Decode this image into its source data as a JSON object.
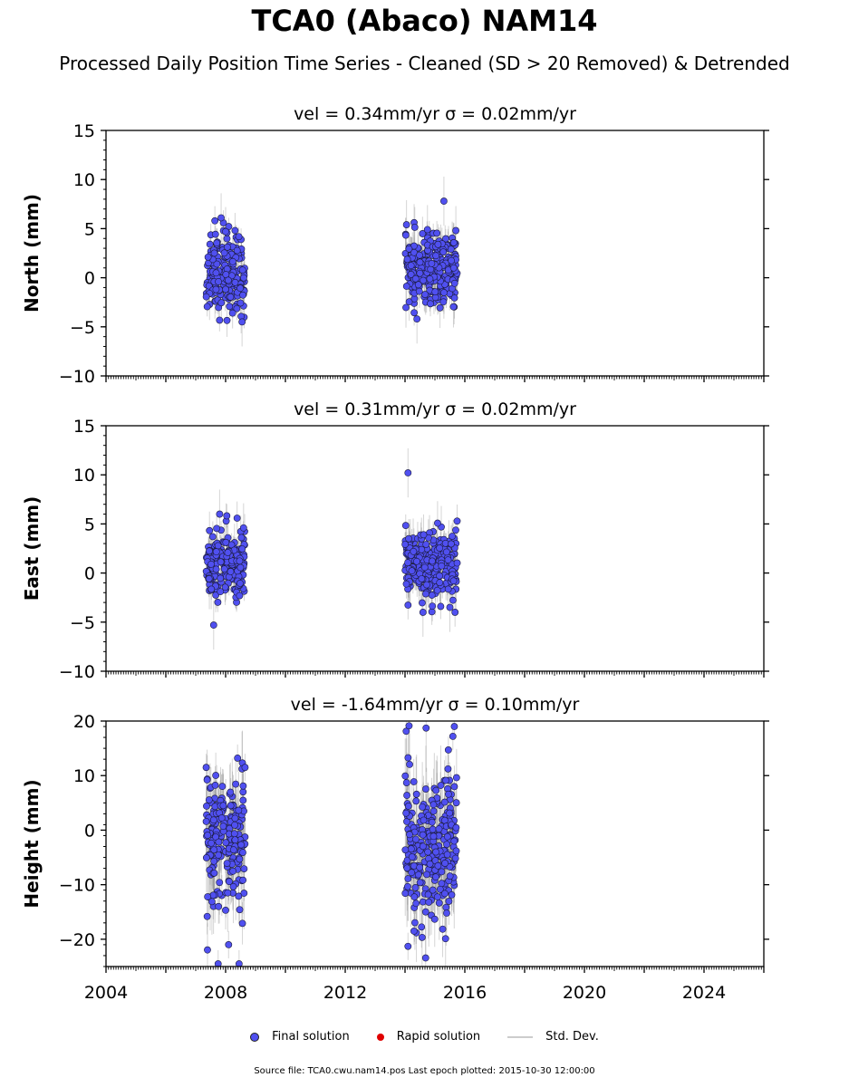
{
  "title": "TCA0 (Abaco) NAM14",
  "subtitle": "Processed Daily Position Time Series - Cleaned (SD > 20 Removed) & Detrended",
  "legend": {
    "final_label": "Final solution",
    "rapid_label": "Rapid solution",
    "sd_label": "Std. Dev.",
    "final_color": "#5050f0",
    "rapid_color": "#e00000",
    "sd_color": "#cccccc"
  },
  "source": "Source file: TCA0.cwu.nam14.pos  Last epoch plotted: 2015-10-30 12:00:00",
  "chart_data": [
    {
      "type": "scatter",
      "panel": "north",
      "title": "vel = 0.34mm/yr   σ = 0.02mm/yr",
      "ylabel": "North (mm)",
      "xlabel": "",
      "xlim": [
        2004,
        2026
      ],
      "ylim": [
        -10,
        15
      ],
      "yticks": [
        -10,
        -5,
        0,
        5,
        10,
        15
      ],
      "ytick_labels": [
        "−10",
        "−5",
        "0",
        "5",
        "10",
        "15"
      ],
      "clusters": [
        {
          "x": [
            2007.35,
            2008.65
          ],
          "y_center": 0.5,
          "y_spread": 2.0,
          "sd": 1.2
        },
        {
          "x": [
            2014.0,
            2015.75
          ],
          "y_center": 0.8,
          "y_spread": 1.8,
          "sd": 1.5
        }
      ],
      "outliers": [
        [
          2007.85,
          6.1
        ],
        [
          2008.0,
          4.7
        ],
        [
          2008.55,
          -4.5
        ],
        [
          2014.05,
          5.4
        ],
        [
          2014.75,
          4.9
        ],
        [
          2015.3,
          7.8
        ],
        [
          2015.7,
          4.8
        ],
        [
          2014.4,
          -4.2
        ]
      ]
    },
    {
      "type": "scatter",
      "panel": "east",
      "title": "vel = 0.31mm/yr   σ = 0.02mm/yr",
      "ylabel": "East (mm)",
      "xlabel": "",
      "xlim": [
        2004,
        2026
      ],
      "ylim": [
        -10,
        15
      ],
      "yticks": [
        -10,
        -5,
        0,
        5,
        10,
        15
      ],
      "ytick_labels": [
        "−10",
        "−5",
        "0",
        "5",
        "10",
        "15"
      ],
      "clusters": [
        {
          "x": [
            2007.35,
            2008.65
          ],
          "y_center": 0.8,
          "y_spread": 1.8,
          "sd": 1.3
        },
        {
          "x": [
            2014.0,
            2015.75
          ],
          "y_center": 1.0,
          "y_spread": 1.8,
          "sd": 1.5
        }
      ],
      "outliers": [
        [
          2007.8,
          6.0
        ],
        [
          2007.6,
          -5.3
        ],
        [
          2014.1,
          10.2
        ],
        [
          2014.6,
          -4.0
        ],
        [
          2015.5,
          -3.5
        ],
        [
          2008.6,
          4.6
        ]
      ]
    },
    {
      "type": "scatter",
      "panel": "height",
      "title": "vel = -1.64mm/yr   σ = 0.10mm/yr",
      "ylabel": "Height (mm)",
      "xlabel": "",
      "xlim": [
        2004,
        2026
      ],
      "ylim": [
        -25,
        20
      ],
      "yticks": [
        -20,
        -10,
        0,
        10,
        20
      ],
      "ytick_labels": [
        "−20",
        "−10",
        "0",
        "10",
        "20"
      ],
      "xticks": [
        2004,
        2008,
        2012,
        2016,
        2020,
        2024
      ],
      "xtick_labels": [
        "2004",
        "2008",
        "2012",
        "2016",
        "2020",
        "2024"
      ],
      "clusters": [
        {
          "x": [
            2007.35,
            2008.65
          ],
          "y_center": -2.0,
          "y_spread": 6.0,
          "sd": 5.0
        },
        {
          "x": [
            2014.0,
            2015.75
          ],
          "y_center": -3.0,
          "y_spread": 6.5,
          "sd": 5.5
        }
      ],
      "outliers": [
        [
          2007.75,
          -24.5
        ],
        [
          2008.45,
          -24.5
        ],
        [
          2008.4,
          13.2
        ],
        [
          2008.65,
          11.5
        ],
        [
          2015.65,
          19.0
        ],
        [
          2015.6,
          17.2
        ],
        [
          2015.45,
          14.7
        ],
        [
          2014.1,
          -21.3
        ],
        [
          2014.3,
          -18.5
        ],
        [
          2008.1,
          -21.0
        ],
        [
          2007.35,
          11.5
        ]
      ]
    }
  ]
}
